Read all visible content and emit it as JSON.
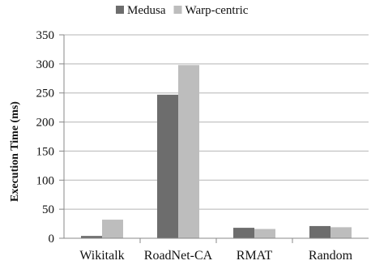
{
  "chart_data": {
    "type": "bar",
    "categories": [
      "Wikitalk",
      "RoadNet-CA",
      "RMAT",
      "Random"
    ],
    "series": [
      {
        "name": "Medusa",
        "values": [
          4,
          247,
          18,
          21
        ],
        "color": "#6d6d6d"
      },
      {
        "name": "Warp-centric",
        "values": [
          32,
          298,
          16,
          19
        ],
        "color": "#bdbdbd"
      }
    ],
    "title": "",
    "xlabel": "",
    "ylabel": "Execution Time (ms)",
    "ylim": [
      0,
      350
    ],
    "yticks": [
      "0",
      "50",
      "100",
      "150",
      "200",
      "250",
      "300",
      "350"
    ],
    "grid": true,
    "legend_position": "top-center"
  }
}
